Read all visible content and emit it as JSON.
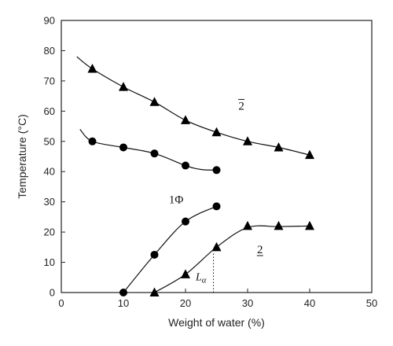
{
  "chart_data": {
    "type": "scatter",
    "xlabel": "Weight of water (%)",
    "ylabel": "Temperature (°C)",
    "xlim": [
      0,
      50
    ],
    "ylim": [
      0,
      90
    ],
    "x_ticks": [
      0,
      10,
      20,
      30,
      40,
      50
    ],
    "y_ticks": [
      0,
      10,
      20,
      30,
      40,
      50,
      60,
      70,
      80,
      90
    ],
    "grid": false,
    "series": [
      {
        "marker": "triangle",
        "points": [
          [
            5,
            74
          ],
          [
            10,
            68
          ],
          [
            15,
            63
          ],
          [
            20,
            57
          ],
          [
            25,
            53
          ],
          [
            30,
            50
          ],
          [
            35,
            48
          ],
          [
            40,
            45.5
          ]
        ],
        "curve": [
          [
            2.5,
            78
          ],
          [
            5,
            74
          ],
          [
            10,
            68
          ],
          [
            15,
            63
          ],
          [
            20,
            57
          ],
          [
            25,
            53
          ],
          [
            30,
            50
          ],
          [
            35,
            48
          ],
          [
            40,
            45.5
          ]
        ]
      },
      {
        "marker": "circle",
        "points": [
          [
            5,
            50
          ],
          [
            10,
            48
          ],
          [
            15,
            46
          ],
          [
            20,
            42
          ],
          [
            25,
            40.5
          ]
        ],
        "curve": [
          [
            3,
            54
          ],
          [
            5,
            50
          ],
          [
            10,
            48
          ],
          [
            15,
            46
          ],
          [
            20,
            42
          ],
          [
            22.5,
            40.7
          ],
          [
            25,
            40.5
          ]
        ]
      },
      {
        "marker": "circle",
        "points": [
          [
            10,
            0
          ],
          [
            15,
            12.5
          ],
          [
            20,
            23.5
          ],
          [
            25,
            28.5
          ]
        ],
        "curve": [
          [
            10,
            0
          ],
          [
            15,
            12.5
          ],
          [
            20,
            23.5
          ],
          [
            25,
            28.5
          ]
        ]
      },
      {
        "marker": "triangle",
        "points": [
          [
            15,
            0
          ],
          [
            20,
            6
          ],
          [
            25,
            15
          ],
          [
            30,
            22
          ],
          [
            35,
            22
          ],
          [
            40,
            22
          ]
        ],
        "curve": [
          [
            15,
            0
          ],
          [
            20,
            6
          ],
          [
            25,
            15
          ],
          [
            30,
            21.5
          ],
          [
            35,
            21.8
          ],
          [
            40,
            22
          ]
        ]
      }
    ],
    "annotations": [
      {
        "text": "2",
        "style": "overline",
        "x": 29,
        "y": 60.5
      },
      {
        "text": "1Φ",
        "style": "normal",
        "x": 18.5,
        "y": 29.5
      },
      {
        "text": "2",
        "style": "underline",
        "x": 32,
        "y": 13
      },
      {
        "text": "Lα",
        "style": "italic",
        "x": 22.5,
        "y": 4
      }
    ],
    "dotted_lines": [
      {
        "x1": 24.5,
        "y1": 0,
        "x2": 24.5,
        "y2": 13
      }
    ]
  }
}
